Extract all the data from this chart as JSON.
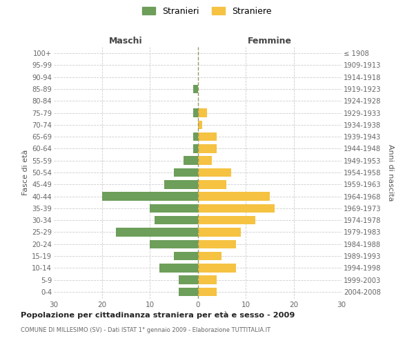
{
  "age_groups": [
    "100+",
    "95-99",
    "90-94",
    "85-89",
    "80-84",
    "75-79",
    "70-74",
    "65-69",
    "60-64",
    "55-59",
    "50-54",
    "45-49",
    "40-44",
    "35-39",
    "30-34",
    "25-29",
    "20-24",
    "15-19",
    "10-14",
    "5-9",
    "0-4"
  ],
  "birth_years": [
    "≤ 1908",
    "1909-1913",
    "1914-1918",
    "1919-1923",
    "1924-1928",
    "1929-1933",
    "1934-1938",
    "1939-1943",
    "1944-1948",
    "1949-1953",
    "1954-1958",
    "1959-1963",
    "1964-1968",
    "1969-1973",
    "1974-1978",
    "1979-1983",
    "1984-1988",
    "1989-1993",
    "1994-1998",
    "1999-2003",
    "2004-2008"
  ],
  "maschi": [
    0,
    0,
    0,
    1,
    0,
    1,
    0,
    1,
    1,
    3,
    5,
    7,
    20,
    10,
    9,
    17,
    10,
    5,
    8,
    4,
    4
  ],
  "femmine": [
    0,
    0,
    0,
    0,
    0,
    2,
    1,
    4,
    4,
    3,
    7,
    6,
    15,
    16,
    12,
    9,
    8,
    5,
    8,
    4,
    4
  ],
  "maschi_color": "#6d9e5a",
  "femmine_color": "#f5c242",
  "title": "Popolazione per cittadinanza straniera per età e sesso - 2009",
  "subtitle": "COMUNE DI MILLESIMO (SV) - Dati ISTAT 1° gennaio 2009 - Elaborazione TUTTITALIA.IT",
  "ylabel_left": "Fasce di età",
  "ylabel_right": "Anni di nascita",
  "xlabel_left": "Maschi",
  "xlabel_right": "Femmine",
  "legend_maschi": "Stranieri",
  "legend_femmine": "Straniere",
  "xlim": 30,
  "background_color": "#ffffff",
  "grid_color": "#cccccc"
}
